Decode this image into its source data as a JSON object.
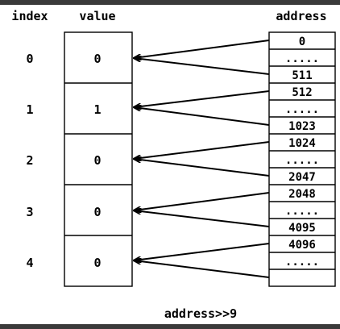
{
  "headers": {
    "index": "index",
    "value": "value",
    "address": "address"
  },
  "rows": [
    {
      "index": "0",
      "value": "0"
    },
    {
      "index": "1",
      "value": "1"
    },
    {
      "index": "2",
      "value": "0"
    },
    {
      "index": "3",
      "value": "0"
    },
    {
      "index": "4",
      "value": "0"
    }
  ],
  "address_cells": [
    "0",
    ".....",
    "511",
    "512",
    ".....",
    "1023",
    "1024",
    ".....",
    "2047",
    "2048",
    ".....",
    "4095",
    "4096",
    ".....",
    ""
  ],
  "caption": "address>>9",
  "colors": {
    "frame": "#3a3a3a",
    "ink": "#000000",
    "background": "#ffffff"
  }
}
